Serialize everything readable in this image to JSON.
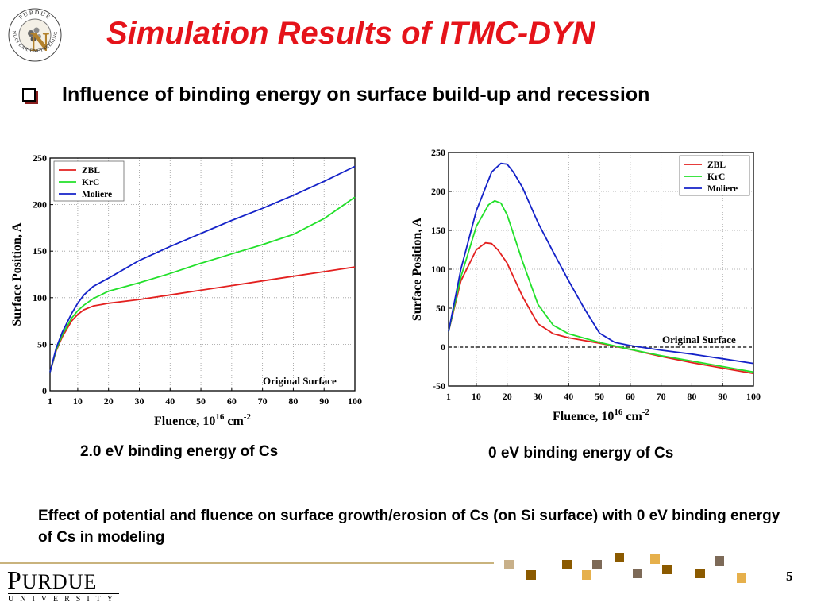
{
  "slide": {
    "title": "Simulation Results of ITMC-DYN",
    "subtitle": "Influence of binding energy on surface build-up and recession",
    "caption_left": "2.0 eV binding energy of Cs",
    "caption_right": "0 eV binding energy of Cs",
    "bottom_text": "Effect of potential and fluence on surface growth/erosion of Cs (on Si surface) with 0 eV binding energy of Cs in modeling",
    "page_number": "5",
    "footer_logo": {
      "word_big": "P",
      "word_rest": "URDUE",
      "sub": "UNIVERSITY"
    },
    "corner_logo": {
      "text_top": "PURDUE",
      "text_side": "NUCLEAR ENGINEERING",
      "letter": "N"
    },
    "colors": {
      "title": "#e5131a",
      "zbl": "#e3201f",
      "krc": "#22e02a",
      "moliere": "#1422c8",
      "accent_squares": [
        "#c8b089",
        "#8b5a00",
        "#e6b04c",
        "#7d6a58"
      ]
    }
  },
  "chart_data": [
    {
      "type": "line",
      "xlabel": "Fluence, 10",
      "xlabel_sup": "16",
      "xlabel_unit": " cm",
      "xlabel_unit_sup": "-2",
      "ylabel": "Surface Position, A",
      "xlim": [
        1,
        100
      ],
      "ylim": [
        0,
        250
      ],
      "xticks": [
        1,
        10,
        20,
        30,
        40,
        50,
        60,
        70,
        80,
        90,
        100
      ],
      "yticks": [
        0,
        50,
        100,
        150,
        200,
        250
      ],
      "grid": true,
      "legend_position": "top-left",
      "annotation": "Original Surface",
      "series": [
        {
          "name": "ZBL",
          "color": "#e3201f",
          "x": [
            1,
            3,
            5,
            8,
            10,
            12,
            15,
            20,
            30,
            40,
            50,
            60,
            70,
            80,
            90,
            100
          ],
          "y": [
            20,
            43,
            58,
            75,
            82,
            87,
            91,
            94,
            98,
            103,
            108,
            113,
            118,
            123,
            128,
            133
          ]
        },
        {
          "name": "KrC",
          "color": "#22e02a",
          "x": [
            1,
            3,
            5,
            8,
            10,
            12,
            15,
            20,
            30,
            40,
            50,
            60,
            70,
            80,
            90,
            100
          ],
          "y": [
            20,
            44,
            60,
            78,
            86,
            92,
            99,
            107,
            116,
            126,
            137,
            147,
            157,
            168,
            185,
            208
          ]
        },
        {
          "name": "Moliere",
          "color": "#1422c8",
          "x": [
            1,
            3,
            5,
            8,
            10,
            12,
            15,
            20,
            30,
            40,
            50,
            60,
            70,
            80,
            90,
            100
          ],
          "y": [
            20,
            46,
            63,
            83,
            94,
            103,
            112,
            121,
            140,
            155,
            169,
            183,
            196,
            210,
            225,
            241
          ]
        }
      ]
    },
    {
      "type": "line",
      "xlabel": "Fluence, 10",
      "xlabel_sup": "16",
      "xlabel_unit": " cm",
      "xlabel_unit_sup": "-2",
      "ylabel": "Surface Position, A",
      "xlim": [
        1,
        100
      ],
      "ylim": [
        -50,
        250
      ],
      "xticks": [
        1,
        10,
        20,
        30,
        40,
        50,
        60,
        70,
        80,
        90,
        100
      ],
      "yticks": [
        -50,
        0,
        50,
        100,
        150,
        200,
        250
      ],
      "grid": true,
      "legend_position": "top-right",
      "annotation": "Original Surface",
      "reference_line": 0,
      "series": [
        {
          "name": "ZBL",
          "color": "#e3201f",
          "x": [
            1,
            5,
            10,
            13,
            15,
            17,
            20,
            25,
            30,
            35,
            40,
            50,
            60,
            70,
            80,
            90,
            100
          ],
          "y": [
            20,
            85,
            125,
            134,
            133,
            125,
            108,
            65,
            30,
            17,
            12,
            5,
            -3,
            -12,
            -20,
            -27,
            -34
          ]
        },
        {
          "name": "KrC",
          "color": "#22e02a",
          "x": [
            1,
            5,
            10,
            14,
            16,
            18,
            20,
            25,
            30,
            35,
            40,
            50,
            60,
            70,
            80,
            90,
            100
          ],
          "y": [
            20,
            90,
            155,
            183,
            188,
            185,
            170,
            110,
            55,
            28,
            17,
            6,
            -3,
            -11,
            -18,
            -25,
            -32
          ]
        },
        {
          "name": "Moliere",
          "color": "#1422c8",
          "x": [
            1,
            5,
            10,
            15,
            18,
            20,
            22,
            25,
            30,
            35,
            40,
            45,
            50,
            55,
            60,
            70,
            80,
            90,
            100
          ],
          "y": [
            20,
            100,
            175,
            225,
            236,
            235,
            225,
            205,
            160,
            122,
            85,
            50,
            18,
            6,
            2,
            -4,
            -9,
            -15,
            -21
          ]
        }
      ]
    }
  ]
}
